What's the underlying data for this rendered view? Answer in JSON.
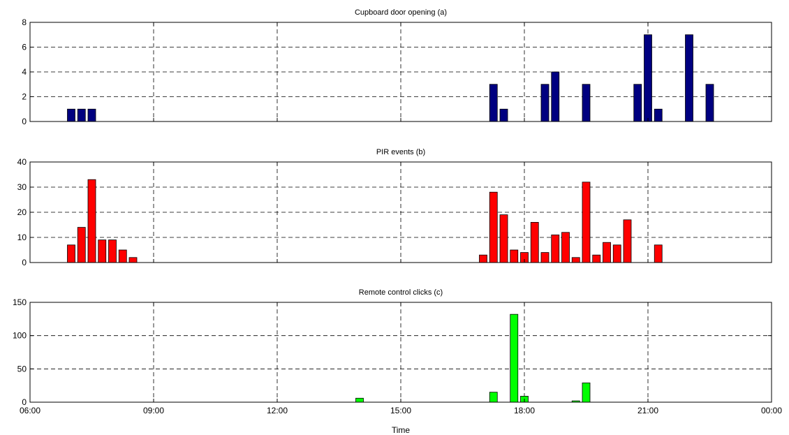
{
  "x_axis_label": "Time",
  "x_tick_labels": [
    "06:00",
    "09:00",
    "12:00",
    "15:00",
    "18:00",
    "21:00",
    "00:00"
  ],
  "chart_data": [
    {
      "type": "bar",
      "title": "Cupboard door opening (a)",
      "xlabel": "",
      "ylabel": "",
      "color": "#000080",
      "grid": true,
      "xlim": [
        "06:00",
        "00:00"
      ],
      "ylim": [
        0,
        8
      ],
      "yticks": [
        0,
        2,
        4,
        6,
        8
      ],
      "x": [
        "07:00",
        "07:15",
        "07:30",
        "17:15",
        "17:30",
        "18:30",
        "18:45",
        "19:30",
        "20:45",
        "21:00",
        "21:15",
        "22:00",
        "22:30"
      ],
      "values": [
        1,
        1,
        1,
        3,
        1,
        3,
        4,
        3,
        3,
        7,
        1,
        7,
        3
      ]
    },
    {
      "type": "bar",
      "title": "PIR events (b)",
      "xlabel": "",
      "ylabel": "",
      "color": "#ff0000",
      "grid": true,
      "xlim": [
        "06:00",
        "00:00"
      ],
      "ylim": [
        0,
        40
      ],
      "yticks": [
        0,
        10,
        20,
        30,
        40
      ],
      "x": [
        "07:00",
        "07:15",
        "07:30",
        "07:45",
        "08:00",
        "08:15",
        "08:30",
        "17:00",
        "17:15",
        "17:30",
        "17:45",
        "18:00",
        "18:15",
        "18:30",
        "18:45",
        "19:00",
        "19:15",
        "19:30",
        "19:45",
        "20:00",
        "20:15",
        "20:30",
        "21:15"
      ],
      "values": [
        7,
        14,
        33,
        9,
        9,
        5,
        2,
        3,
        28,
        19,
        5,
        4,
        16,
        4,
        11,
        12,
        2,
        32,
        3,
        8,
        7,
        17,
        7
      ]
    },
    {
      "type": "bar",
      "title": "Remote control clicks (c)",
      "xlabel": "Time",
      "ylabel": "",
      "color": "#00ff00",
      "grid": true,
      "xlim": [
        "06:00",
        "00:00"
      ],
      "ylim": [
        0,
        150
      ],
      "yticks": [
        0,
        50,
        100,
        150
      ],
      "x": [
        "14:00",
        "17:15",
        "17:45",
        "18:00",
        "19:15",
        "19:30"
      ],
      "values": [
        6,
        15,
        132,
        9,
        2,
        29
      ]
    }
  ]
}
